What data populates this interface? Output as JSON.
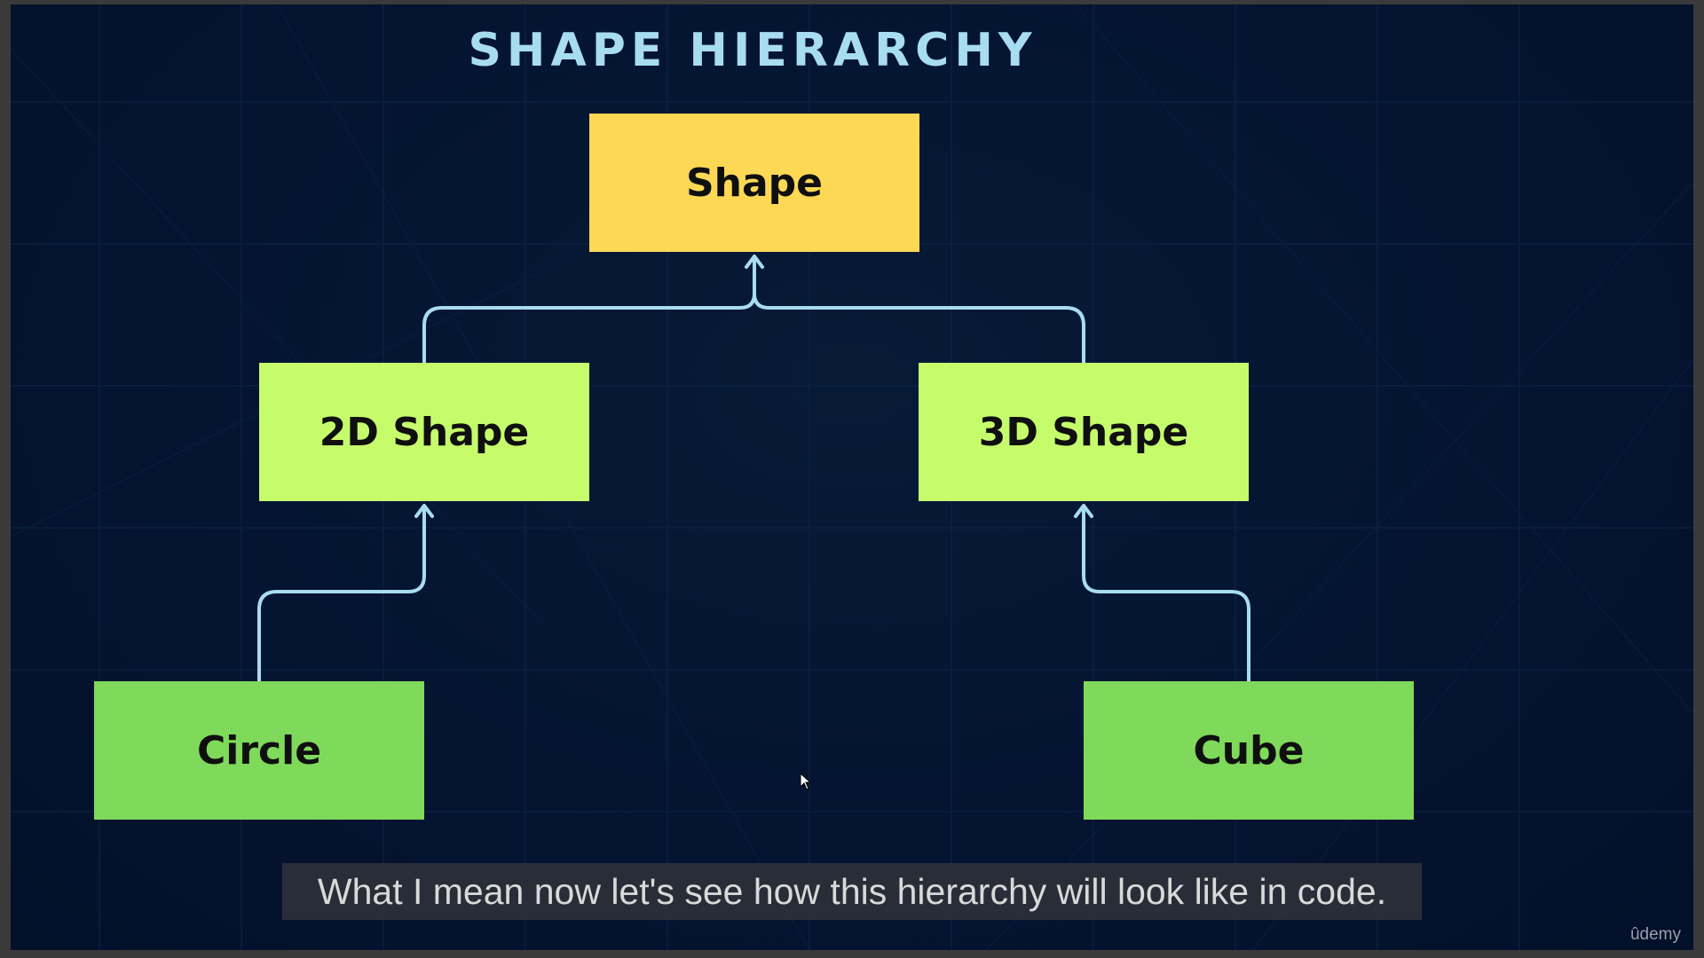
{
  "slide": {
    "title": "SHAPE HIERARCHY",
    "nodes": {
      "shape": "Shape",
      "shape_2d": "2D Shape",
      "shape_3d": "3D Shape",
      "circle": "Circle",
      "cube": "Cube"
    },
    "edges": [
      {
        "from": "2D Shape",
        "to": "Shape"
      },
      {
        "from": "3D Shape",
        "to": "Shape"
      },
      {
        "from": "Circle",
        "to": "2D Shape"
      },
      {
        "from": "Cube",
        "to": "3D Shape"
      }
    ],
    "colors": {
      "background": "#041431",
      "title": "#a8dcf0",
      "root_node": "#fdd855",
      "mid_node": "#c6fb6c",
      "leaf_node": "#7fd95a",
      "connector": "#a8dcf0"
    }
  },
  "caption": {
    "text": "What I mean now let's see how this hierarchy will look like in code."
  },
  "watermark": {
    "text": "ûdemy"
  }
}
